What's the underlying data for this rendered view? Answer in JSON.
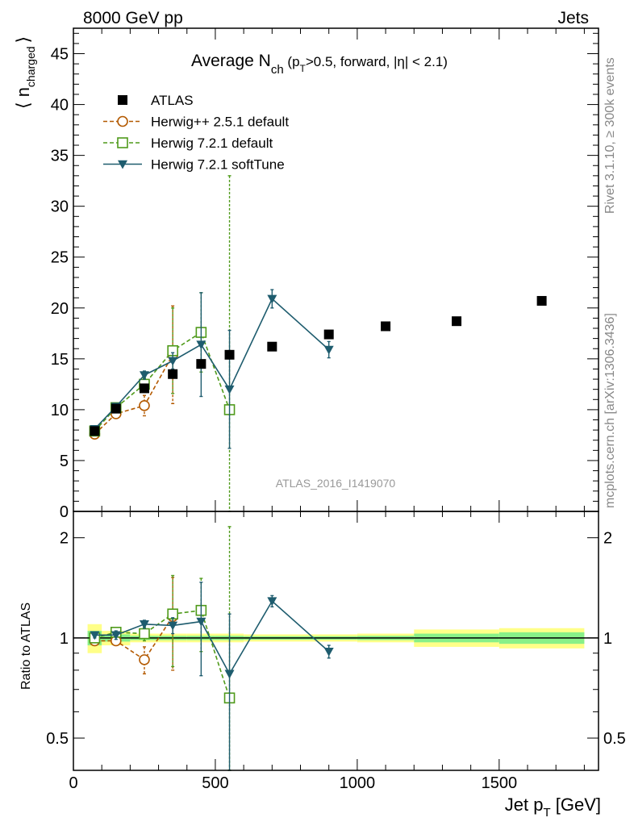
{
  "header": {
    "left": "8000 GeV pp",
    "right": "Jets"
  },
  "side_texts": {
    "rivet": "Rivet 3.1.10, ≥ 300k events",
    "mcplots": "mcplots.cern.ch [arXiv:1306.3436]"
  },
  "chart_data": [
    {
      "type": "scatter",
      "panel": "main",
      "title_main": "Average N",
      "title_sub": "ch",
      "title_rest": " (p",
      "title_rest_sub": "T",
      "title_rest2": ">0.5, forward, |η| < 2.1)",
      "ylabel": "⟨ n",
      "ylabel_sub": "charged",
      "ylabel_end": "⟩",
      "xlabel": "",
      "xlim": [
        0,
        1850
      ],
      "ylim": [
        0,
        47.5
      ],
      "yticks": [
        0,
        5,
        10,
        15,
        20,
        25,
        30,
        35,
        40,
        45
      ],
      "watermark": "ATLAS_2016_I1419070",
      "legend_position": "top-left",
      "series": [
        {
          "name": "ATLAS",
          "color": "#000000",
          "marker": "square-filled",
          "line": "none",
          "x": [
            75,
            150,
            250,
            350,
            450,
            550,
            700,
            900,
            1100,
            1350,
            1650
          ],
          "y": [
            7.9,
            10.1,
            12.1,
            13.5,
            14.5,
            15.4,
            16.2,
            17.4,
            18.2,
            18.7,
            20.7
          ]
        },
        {
          "name": "Herwig++ 2.5.1 default",
          "color": "#b35900",
          "marker": "circle-open",
          "line": "dashed",
          "x": [
            75,
            150,
            250,
            350
          ],
          "y": [
            7.6,
            9.6,
            10.4,
            15.4
          ],
          "err": [
            0.3,
            0.3,
            1.0,
            4.8
          ]
        },
        {
          "name": "Herwig 7.2.1 default",
          "color": "#4f9a1a",
          "marker": "square-open",
          "line": "dashed",
          "x": [
            75,
            150,
            250,
            350,
            450,
            550
          ],
          "y": [
            7.9,
            10.2,
            12.5,
            15.8,
            17.6,
            10.0
          ],
          "err": [
            0.3,
            0.3,
            0.6,
            4.2,
            3.9,
            23.0
          ]
        },
        {
          "name": "Herwig 7.2.1 softTune",
          "color": "#1e5c6e",
          "marker": "triangle-down-filled",
          "line": "solid",
          "x": [
            75,
            150,
            250,
            350,
            450,
            550,
            700,
            900
          ],
          "y": [
            8.1,
            10.3,
            13.4,
            14.8,
            16.4,
            12.0,
            20.9,
            15.9
          ],
          "err": [
            0.2,
            0.3,
            0.4,
            0.8,
            5.1,
            5.8,
            0.9,
            0.8
          ]
        }
      ]
    },
    {
      "type": "scatter",
      "panel": "ratio",
      "xlabel": "Jet p",
      "xlabel_sub": "T",
      "xlabel_unit": " [GeV]",
      "ylabel": "Ratio to ATLAS",
      "xlim": [
        0,
        1850
      ],
      "ylim": [
        0.4,
        2.4
      ],
      "scale": "log",
      "xticks": [
        0,
        500,
        1000,
        1500
      ],
      "yticks": [
        0.5,
        1,
        2
      ],
      "bands": {
        "edges": [
          50,
          100,
          200,
          300,
          400,
          500,
          600,
          800,
          1000,
          1200,
          1500,
          1800
        ],
        "outer_yellow": [
          0.1,
          0.05,
          0.03,
          0.03,
          0.03,
          0.03,
          0.025,
          0.025,
          0.03,
          0.06,
          0.07
        ],
        "inner_green": [
          0.05,
          0.025,
          0.015,
          0.015,
          0.015,
          0.015,
          0.012,
          0.012,
          0.015,
          0.03,
          0.04
        ]
      },
      "series": [
        {
          "name": "Herwig++ 2.5.1 default",
          "color": "#b35900",
          "marker": "circle-open",
          "line": "dashed",
          "x": [
            75,
            150,
            250,
            350
          ],
          "y": [
            0.98,
            0.98,
            0.86,
            1.16
          ],
          "err": [
            0.03,
            0.03,
            0.08,
            0.36
          ]
        },
        {
          "name": "Herwig 7.2.1 default",
          "color": "#4f9a1a",
          "marker": "square-open",
          "line": "dashed",
          "x": [
            75,
            150,
            250,
            350,
            450,
            550
          ],
          "y": [
            1.0,
            1.04,
            1.03,
            1.18,
            1.21,
            0.66
          ],
          "err": [
            0.03,
            0.03,
            0.05,
            0.36,
            0.3,
            1.5
          ]
        },
        {
          "name": "Herwig 7.2.1 softTune",
          "color": "#1e5c6e",
          "marker": "triangle-down-filled",
          "line": "solid",
          "x": [
            75,
            150,
            250,
            350,
            450,
            550,
            700,
            900
          ],
          "y": [
            1.02,
            1.02,
            1.1,
            1.09,
            1.12,
            0.78,
            1.29,
            0.91
          ],
          "err": [
            0.02,
            0.03,
            0.03,
            0.06,
            0.35,
            0.4,
            0.05,
            0.04
          ]
        }
      ]
    }
  ]
}
